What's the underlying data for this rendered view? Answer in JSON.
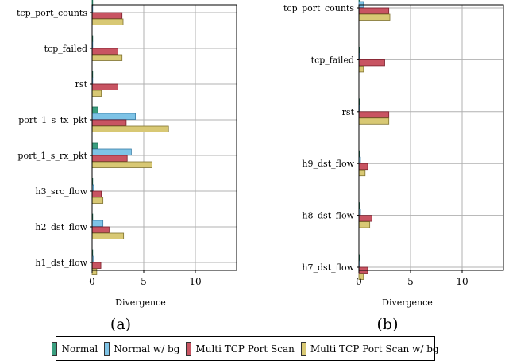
{
  "chart_data": [
    {
      "type": "bar",
      "orientation": "horizontal",
      "panel_label": "(a)",
      "xlabel": "Divergence",
      "ylabel": "",
      "xlim": [
        0,
        14
      ],
      "xticks": [
        0,
        5,
        10
      ],
      "grid": true,
      "categories": [
        "tcp_port_counts",
        "tcp_failed",
        "rst",
        "port_1_s_tx_pkt",
        "port_1_s_rx_pkt",
        "h3_src_flow",
        "h2_dst_flow",
        "h1_dst_flow"
      ],
      "series": [
        {
          "name": "Normal",
          "values": [
            0.05,
            0.05,
            0.03,
            0.55,
            0.55,
            0.03,
            0.05,
            0.03
          ]
        },
        {
          "name": "Normal w/ bg",
          "values": [
            0.05,
            0.05,
            0.03,
            4.2,
            3.8,
            0.15,
            1.05,
            0.1
          ]
        },
        {
          "name": "Multi TCP Port Scan",
          "values": [
            2.9,
            2.5,
            2.5,
            3.3,
            3.4,
            0.9,
            1.65,
            0.85
          ]
        },
        {
          "name": "Multi TCP Port Scan w/ bg",
          "values": [
            3.0,
            2.9,
            0.9,
            7.4,
            5.8,
            1.05,
            3.05,
            0.45
          ]
        }
      ]
    },
    {
      "type": "bar",
      "orientation": "horizontal",
      "panel_label": "(b)",
      "xlabel": "Divergence",
      "ylabel": "",
      "xlim": [
        0,
        14
      ],
      "xticks": [
        0,
        5,
        10
      ],
      "grid": true,
      "categories": [
        "tcp_port_counts",
        "tcp_failed",
        "rst",
        "h9_dst_flow",
        "h8_dst_flow",
        "h7_dst_flow"
      ],
      "series": [
        {
          "name": "Normal",
          "values": [
            0.03,
            0.03,
            0.03,
            0.03,
            0.03,
            0.03
          ]
        },
        {
          "name": "Normal w/ bg",
          "values": [
            0.45,
            0.05,
            0.05,
            0.15,
            0.15,
            0.1
          ]
        },
        {
          "name": "Multi TCP Port Scan",
          "values": [
            2.9,
            2.5,
            2.9,
            0.85,
            1.25,
            0.85
          ]
        },
        {
          "name": "Multi TCP Port Scan w/ bg",
          "values": [
            3.0,
            0.45,
            2.9,
            0.6,
            1.05,
            0.45
          ]
        }
      ]
    }
  ],
  "legend": {
    "items": [
      {
        "label": "Normal",
        "color": "#3a9e7f"
      },
      {
        "label": "Normal w/ bg",
        "color": "#7ec3e6"
      },
      {
        "label": "Multi TCP Port Scan",
        "color": "#c85462"
      },
      {
        "label": "Multi TCP Port Scan w/ bg",
        "color": "#d8c874"
      }
    ]
  }
}
